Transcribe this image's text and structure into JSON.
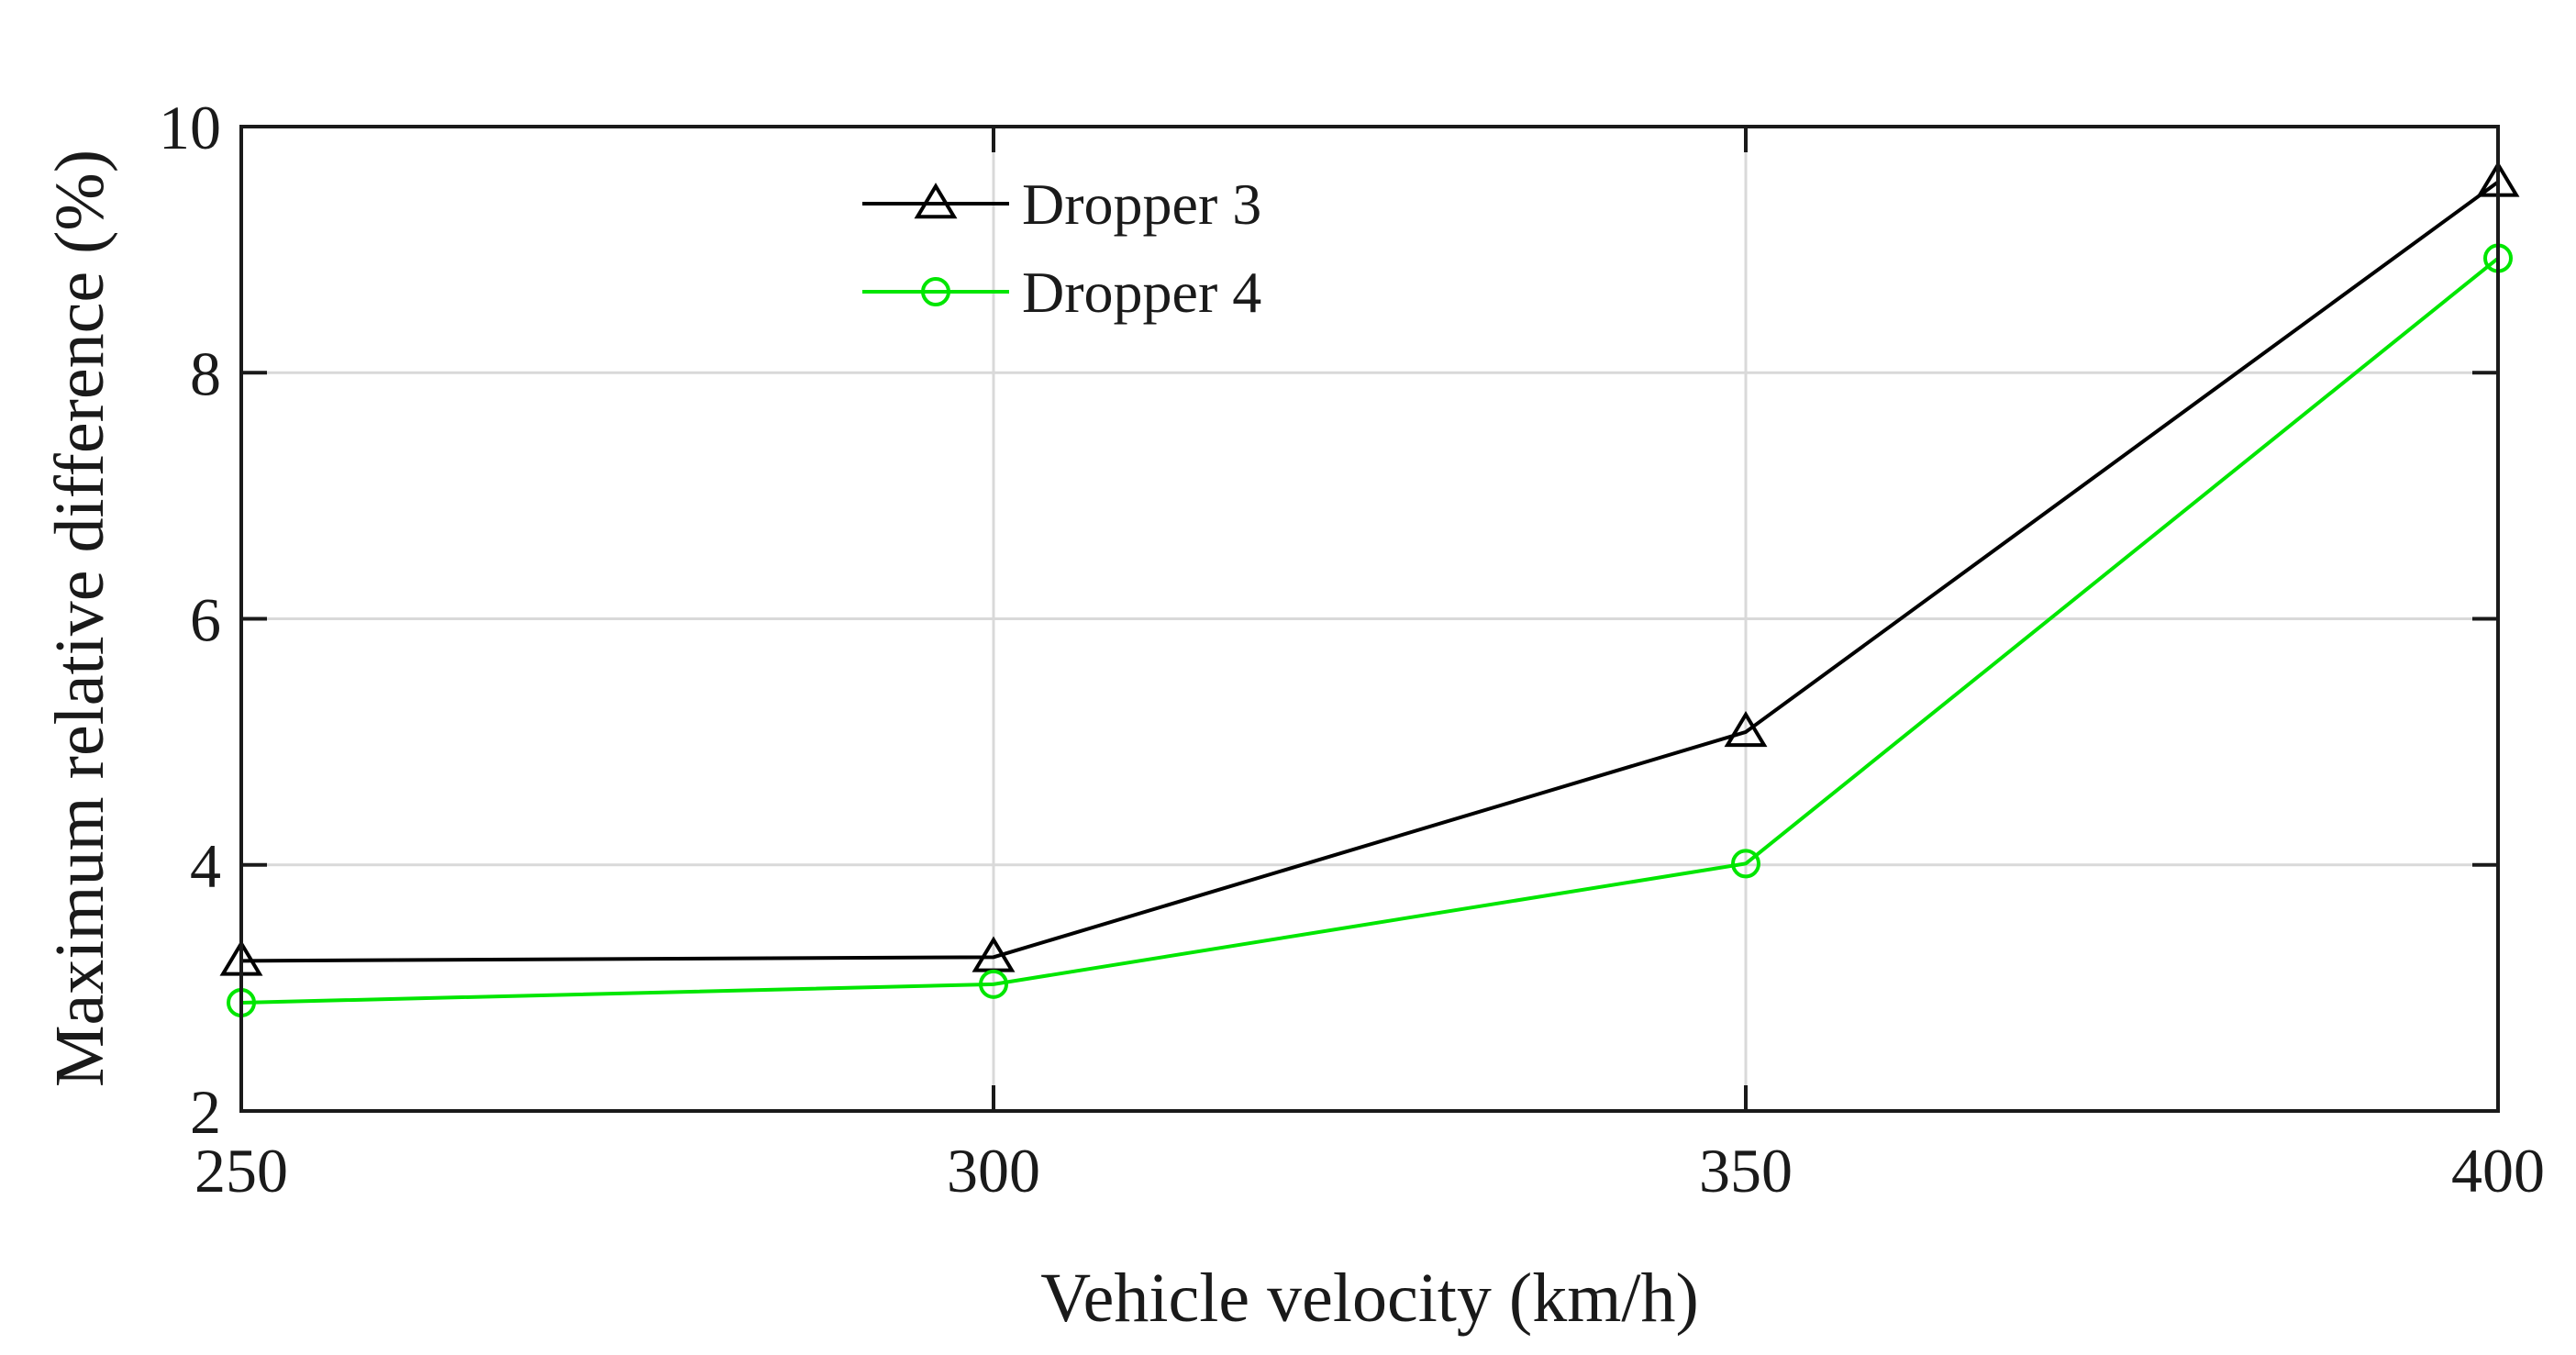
{
  "chart_data": {
    "type": "line",
    "xlabel": "Vehicle velocity (km/h)",
    "ylabel": "Maximum relative difference (%)",
    "xlim": [
      250,
      400
    ],
    "ylim": [
      2,
      10
    ],
    "xticks": [
      250,
      300,
      350,
      400
    ],
    "yticks": [
      2,
      4,
      6,
      8,
      10
    ],
    "x_tick_labels": [
      "250",
      "300",
      "350",
      "400"
    ],
    "y_tick_labels": [
      "2",
      "4",
      "6",
      "8",
      "10"
    ],
    "grid": true,
    "legend_position": "top-center",
    "x": [
      250,
      300,
      350,
      400
    ],
    "series": [
      {
        "name": "Dropper 3",
        "values": [
          3.22,
          3.25,
          5.08,
          9.55
        ],
        "color": "#000000",
        "marker": "triangle"
      },
      {
        "name": "Dropper 4",
        "values": [
          2.88,
          3.03,
          4.01,
          8.93
        ],
        "color": "#00e600",
        "marker": "circle"
      }
    ]
  }
}
